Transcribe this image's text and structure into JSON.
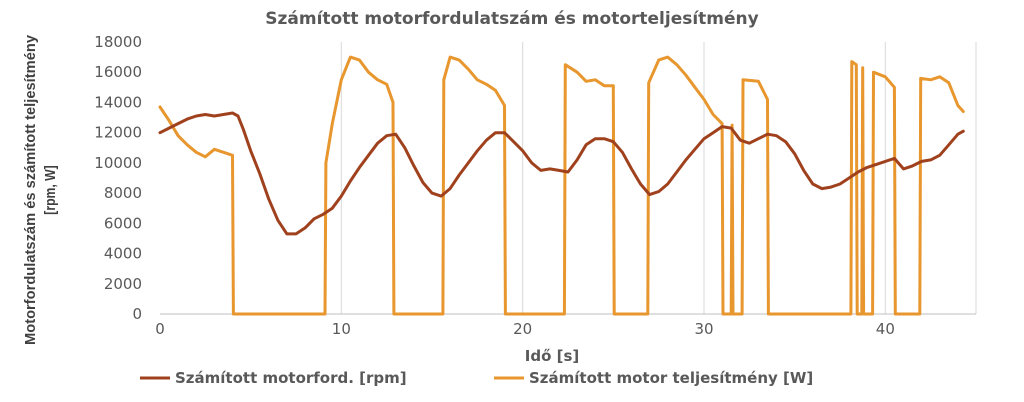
{
  "chart_data": {
    "type": "line",
    "title": "Számított motorfordulatszám és motorteljesítmény",
    "xlabel": "Idő [s]",
    "ylabel": "Motorfordulatszám és számított teljesítmény [rpm, W]",
    "xlim": [
      0,
      45
    ],
    "ylim": [
      0,
      18000
    ],
    "x_ticks": [
      "0",
      "10",
      "20",
      "30",
      "40"
    ],
    "y_ticks": [
      "0",
      "2000",
      "4000",
      "6000",
      "8000",
      "10000",
      "12000",
      "14000",
      "16000",
      "18000"
    ],
    "grid": "vertical",
    "legend_position": "bottom",
    "series": [
      {
        "name": "Számított motorford. [rpm]",
        "color": "#a0411e",
        "points": [
          [
            0,
            12000
          ],
          [
            0.5,
            12300
          ],
          [
            1,
            12600
          ],
          [
            1.5,
            12900
          ],
          [
            2,
            13100
          ],
          [
            2.5,
            13200
          ],
          [
            3,
            13100
          ],
          [
            3.5,
            13200
          ],
          [
            4,
            13300
          ],
          [
            4.3,
            13100
          ],
          [
            4.6,
            12200
          ],
          [
            5,
            10800
          ],
          [
            5.5,
            9300
          ],
          [
            6,
            7600
          ],
          [
            6.5,
            6200
          ],
          [
            7,
            5300
          ],
          [
            7.5,
            5300
          ],
          [
            8,
            5700
          ],
          [
            8.5,
            6300
          ],
          [
            9,
            6600
          ],
          [
            9.5,
            7000
          ],
          [
            10,
            7800
          ],
          [
            10.5,
            8800
          ],
          [
            11,
            9700
          ],
          [
            11.5,
            10500
          ],
          [
            12,
            11300
          ],
          [
            12.5,
            11800
          ],
          [
            13,
            11900
          ],
          [
            13.5,
            11000
          ],
          [
            14,
            9800
          ],
          [
            14.5,
            8700
          ],
          [
            15,
            8000
          ],
          [
            15.5,
            7800
          ],
          [
            16,
            8300
          ],
          [
            16.5,
            9200
          ],
          [
            17,
            10000
          ],
          [
            17.5,
            10800
          ],
          [
            18,
            11500
          ],
          [
            18.5,
            12000
          ],
          [
            19,
            12000
          ],
          [
            19.5,
            11400
          ],
          [
            20,
            10800
          ],
          [
            20.5,
            10000
          ],
          [
            21,
            9500
          ],
          [
            21.5,
            9600
          ],
          [
            22,
            9500
          ],
          [
            22.5,
            9400
          ],
          [
            23,
            10200
          ],
          [
            23.5,
            11200
          ],
          [
            24,
            11600
          ],
          [
            24.5,
            11600
          ],
          [
            25,
            11400
          ],
          [
            25.5,
            10700
          ],
          [
            26,
            9600
          ],
          [
            26.5,
            8600
          ],
          [
            27,
            7900
          ],
          [
            27.5,
            8100
          ],
          [
            28,
            8600
          ],
          [
            28.5,
            9400
          ],
          [
            29,
            10200
          ],
          [
            29.5,
            10900
          ],
          [
            30,
            11600
          ],
          [
            30.5,
            12000
          ],
          [
            31,
            12400
          ],
          [
            31.5,
            12300
          ],
          [
            32,
            11500
          ],
          [
            32.5,
            11300
          ],
          [
            33,
            11600
          ],
          [
            33.5,
            11900
          ],
          [
            34,
            11800
          ],
          [
            34.5,
            11400
          ],
          [
            35,
            10600
          ],
          [
            35.5,
            9500
          ],
          [
            36,
            8600
          ],
          [
            36.5,
            8300
          ],
          [
            37,
            8400
          ],
          [
            37.5,
            8600
          ],
          [
            38,
            9000
          ],
          [
            38.5,
            9400
          ],
          [
            39,
            9700
          ],
          [
            39.5,
            9900
          ],
          [
            40,
            10100
          ],
          [
            40.5,
            10300
          ],
          [
            41,
            9600
          ],
          [
            41.5,
            9800
          ],
          [
            42,
            10100
          ],
          [
            42.5,
            10200
          ],
          [
            43,
            10500
          ],
          [
            43.5,
            11200
          ],
          [
            44,
            11900
          ],
          [
            44.3,
            12100
          ]
        ]
      },
      {
        "name": "Számított motor teljesítmény [W]",
        "color": "#e8962e",
        "points": [
          [
            0,
            13700
          ],
          [
            0.5,
            12800
          ],
          [
            1,
            11800
          ],
          [
            1.5,
            11200
          ],
          [
            2,
            10700
          ],
          [
            2.5,
            10400
          ],
          [
            3,
            10900
          ],
          [
            3.5,
            10700
          ],
          [
            4,
            10500
          ],
          [
            4.05,
            0
          ],
          [
            9.1,
            0
          ],
          [
            9.15,
            10000
          ],
          [
            9.5,
            12600
          ],
          [
            10,
            15500
          ],
          [
            10.5,
            17000
          ],
          [
            11,
            16800
          ],
          [
            11.5,
            16000
          ],
          [
            12,
            15500
          ],
          [
            12.5,
            15200
          ],
          [
            12.85,
            14000
          ],
          [
            12.9,
            0
          ],
          [
            15.6,
            0
          ],
          [
            15.65,
            15500
          ],
          [
            16,
            17000
          ],
          [
            16.5,
            16800
          ],
          [
            17,
            16200
          ],
          [
            17.5,
            15500
          ],
          [
            18,
            15200
          ],
          [
            18.5,
            14800
          ],
          [
            19,
            13800
          ],
          [
            19.05,
            0
          ],
          [
            22.3,
            0
          ],
          [
            22.35,
            16500
          ],
          [
            23,
            16000
          ],
          [
            23.5,
            15400
          ],
          [
            24,
            15500
          ],
          [
            24.5,
            15100
          ],
          [
            25,
            15100
          ],
          [
            25.05,
            0
          ],
          [
            26.9,
            0
          ],
          [
            26.95,
            15300
          ],
          [
            27.5,
            16800
          ],
          [
            28,
            17000
          ],
          [
            28.5,
            16500
          ],
          [
            29,
            15800
          ],
          [
            29.5,
            15000
          ],
          [
            30,
            14200
          ],
          [
            30.5,
            13200
          ],
          [
            31,
            12600
          ],
          [
            31.05,
            0
          ],
          [
            31.5,
            0
          ],
          [
            31.55,
            12500
          ],
          [
            31.6,
            0
          ],
          [
            32.1,
            0
          ],
          [
            32.15,
            15500
          ],
          [
            33,
            15400
          ],
          [
            33.5,
            14200
          ],
          [
            33.55,
            0
          ],
          [
            38.1,
            0
          ],
          [
            38.15,
            16700
          ],
          [
            38.4,
            16500
          ],
          [
            38.45,
            0
          ],
          [
            38.7,
            0
          ],
          [
            38.75,
            16300
          ],
          [
            38.8,
            0
          ],
          [
            39.3,
            0
          ],
          [
            39.35,
            16000
          ],
          [
            40,
            15700
          ],
          [
            40.5,
            15000
          ],
          [
            40.55,
            0
          ],
          [
            41.9,
            0
          ],
          [
            41.95,
            15600
          ],
          [
            42.5,
            15500
          ],
          [
            43,
            15700
          ],
          [
            43.5,
            15300
          ],
          [
            44,
            13800
          ],
          [
            44.3,
            13400
          ]
        ]
      }
    ]
  }
}
